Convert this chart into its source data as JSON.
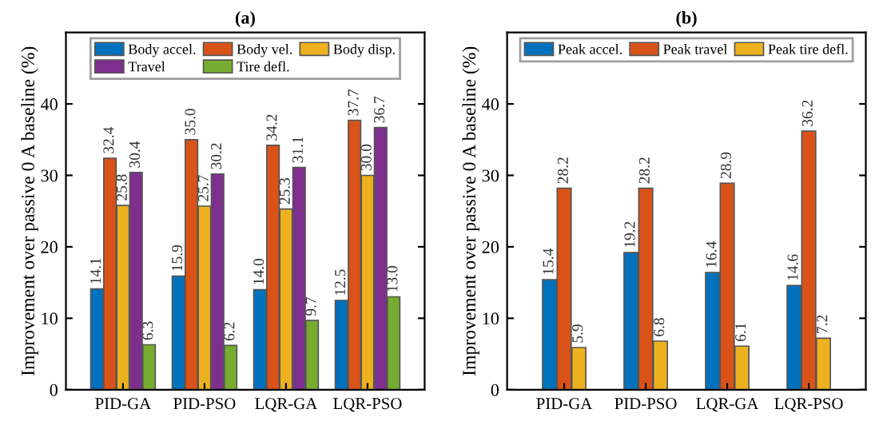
{
  "chart_data": [
    {
      "type": "bar",
      "title": "(a)",
      "ylabel": "Improvement over passive 0 A baseline (%)",
      "categories": [
        "PID-GA",
        "PID-PSO",
        "LQR-GA",
        "LQR-PSO"
      ],
      "ylim": [
        0,
        50
      ],
      "yticks": [
        0,
        10,
        20,
        30,
        40
      ],
      "legend": "top",
      "grid": false,
      "series": [
        {
          "name": "Body accel.",
          "color": "#0072bd",
          "values": [
            14.1,
            15.9,
            14.0,
            12.5
          ],
          "value_labels": [
            "14.1",
            "15.9",
            "14.0",
            "12.5"
          ]
        },
        {
          "name": "Body vel.",
          "color": "#d95319",
          "values": [
            32.4,
            35.0,
            34.2,
            37.7
          ],
          "value_labels": [
            "32.4",
            "35.0",
            "34.2",
            "37.7"
          ]
        },
        {
          "name": "Body disp.",
          "color": "#edb120",
          "values": [
            25.8,
            25.7,
            25.3,
            30.0
          ],
          "value_labels": [
            "25.8",
            "25.7",
            "25.3",
            "30.0"
          ]
        },
        {
          "name": "Travel",
          "color": "#7e2f8e",
          "values": [
            30.4,
            30.2,
            31.1,
            36.7
          ],
          "value_labels": [
            "30.4",
            "30.2",
            "31.1",
            "36.7"
          ]
        },
        {
          "name": "Tire defl.",
          "color": "#77ac30",
          "values": [
            6.3,
            6.2,
            9.7,
            13.0
          ],
          "value_labels": [
            "6.3",
            "6.2",
            "9.7",
            "13.0"
          ]
        }
      ]
    },
    {
      "type": "bar",
      "title": "(b)",
      "ylabel": "Improvement over passive 0 A baseline (%)",
      "categories": [
        "PID-GA",
        "PID-PSO",
        "LQR-GA",
        "LQR-PSO"
      ],
      "ylim": [
        0,
        50
      ],
      "yticks": [
        0,
        10,
        20,
        30,
        40
      ],
      "legend": "top",
      "grid": false,
      "series": [
        {
          "name": "Peak accel.",
          "color": "#0072bd",
          "values": [
            15.4,
            19.2,
            16.4,
            14.6
          ],
          "value_labels": [
            "15.4",
            "19.2",
            "16.4",
            "14.6"
          ]
        },
        {
          "name": "Peak travel",
          "color": "#d95319",
          "values": [
            28.2,
            28.2,
            28.9,
            36.2
          ],
          "value_labels": [
            "28.2",
            "28.2",
            "28.9",
            "36.2"
          ]
        },
        {
          "name": "Peak tire defl.",
          "color": "#edb120",
          "values": [
            5.9,
            6.8,
            6.1,
            7.2
          ],
          "value_labels": [
            "5.9",
            "6.8",
            "6.1",
            "7.2"
          ]
        }
      ]
    }
  ]
}
